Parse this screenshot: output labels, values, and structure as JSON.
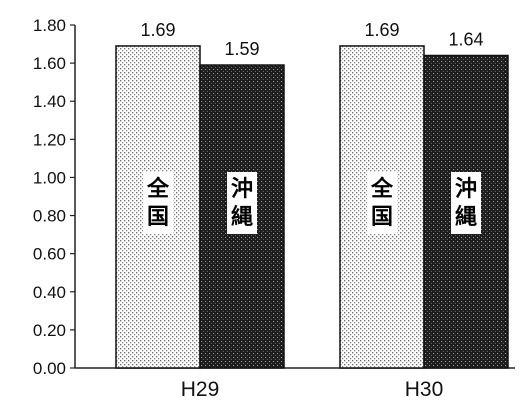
{
  "chart_data": {
    "type": "bar",
    "title": "",
    "xlabel": "",
    "ylabel": "",
    "categories": [
      "H29",
      "H30"
    ],
    "series": [
      {
        "name": "全国",
        "values": [
          1.69,
          1.69
        ],
        "labels": [
          "1.69",
          "1.69"
        ],
        "color": "#ffffff",
        "pattern": "light-dots"
      },
      {
        "name": "沖縄",
        "values": [
          1.59,
          1.64
        ],
        "labels": [
          "1.59",
          "1.64"
        ],
        "color": "#1a1a1a",
        "pattern": "dark-crosshatch"
      }
    ],
    "ylim": [
      0,
      1.8
    ],
    "yticks": [
      "0.00",
      "0.20",
      "0.40",
      "0.60",
      "0.80",
      "1.00",
      "1.20",
      "1.40",
      "1.60",
      "1.80"
    ],
    "grid": false,
    "legend": "none"
  }
}
